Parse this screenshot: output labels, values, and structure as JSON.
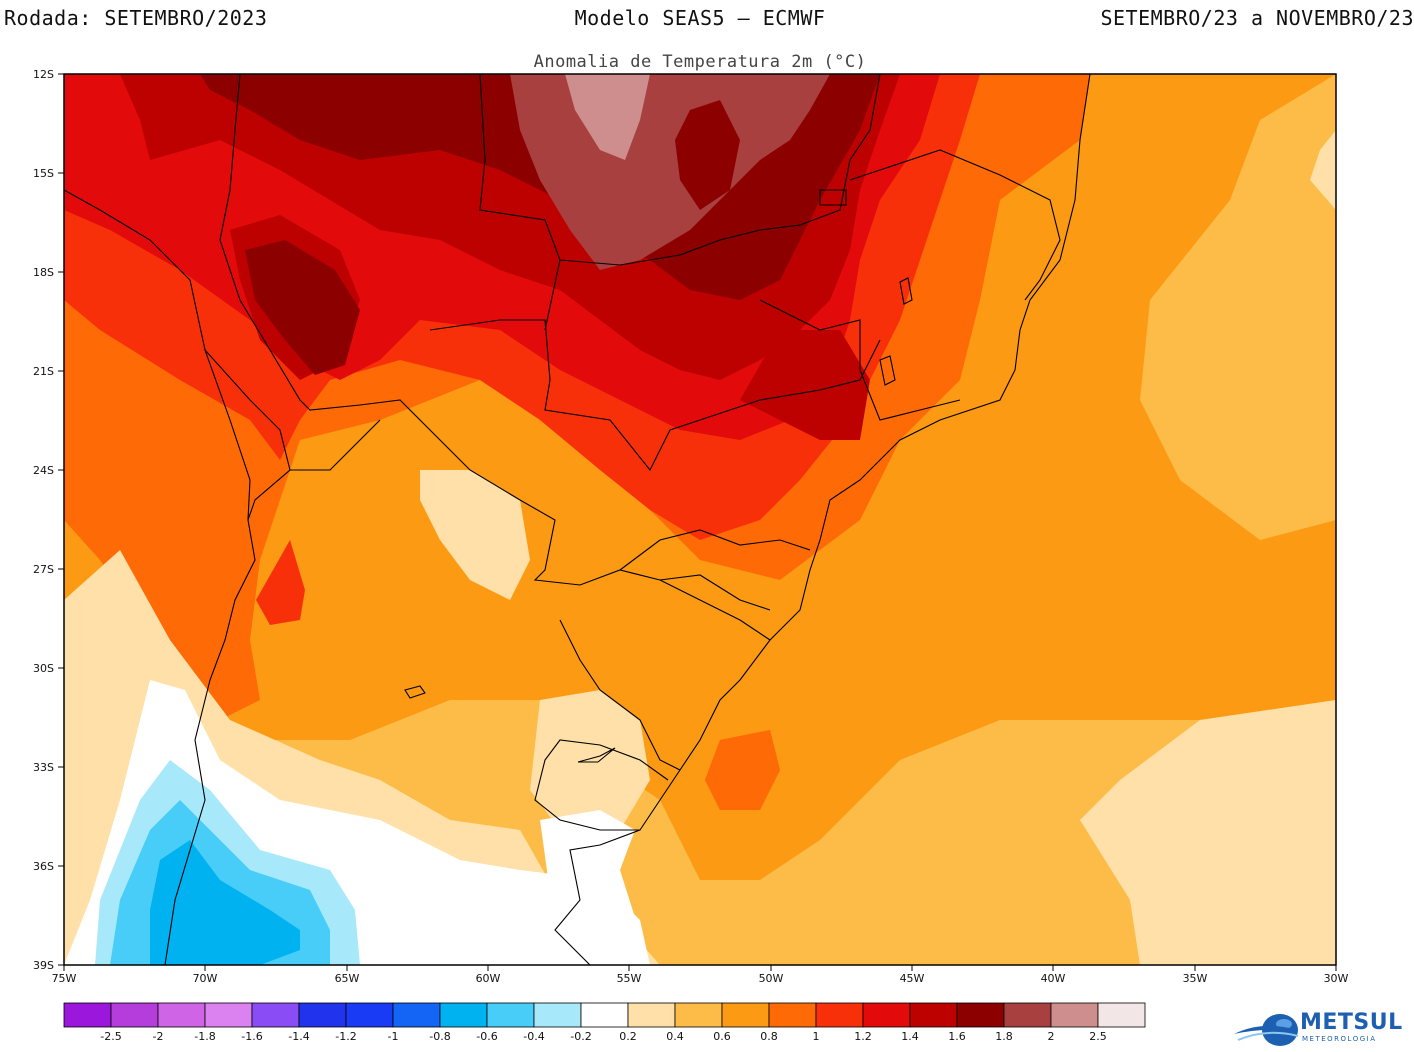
{
  "header": {
    "run": "Rodada: SETEMBRO/2023",
    "model": "Modelo SEAS5 – ECMWF",
    "period": "SETEMBRO/23 a NOVEMBRO/23"
  },
  "subtitle": "Anomalia de Temperatura 2m (°C)",
  "map": {
    "lon_range": [
      -75,
      -30
    ],
    "lat_range": [
      -39,
      -12
    ],
    "lat_ticks": [
      "12S",
      "15S",
      "18S",
      "21S",
      "24S",
      "27S",
      "30S",
      "33S",
      "36S",
      "39S"
    ],
    "lon_ticks": [
      "75W",
      "70W",
      "65W",
      "60W",
      "55W",
      "50W",
      "45W",
      "40W",
      "35W",
      "30W"
    ]
  },
  "colorbar": {
    "labels": [
      "-2.5",
      "-2",
      "-1.8",
      "-1.6",
      "-1.4",
      "-1.2",
      "-1",
      "-0.8",
      "-0.6",
      "-0.4",
      "-0.2",
      "0.2",
      "0.4",
      "0.6",
      "0.8",
      "1",
      "1.2",
      "1.4",
      "1.6",
      "1.8",
      "2",
      "2.5"
    ],
    "colors": [
      "#9b17dc",
      "#b43ddc",
      "#d064e6",
      "#db82f0",
      "#8a4cf5",
      "#2233ee",
      "#1a3bf5",
      "#1465f5",
      "#00b2f0",
      "#47cdf7",
      "#a8e8fb",
      "#ffffff",
      "#fee0a8",
      "#fdbc48",
      "#fc9a14",
      "#fe6a06",
      "#f8300a",
      "#e20a0a",
      "#bd0000",
      "#8c0000",
      "#a84040",
      "#cf8e8e",
      "#f3e6e6"
    ]
  },
  "logo": {
    "name": "METSUL",
    "tagline": "METEOROLOGIA"
  }
}
